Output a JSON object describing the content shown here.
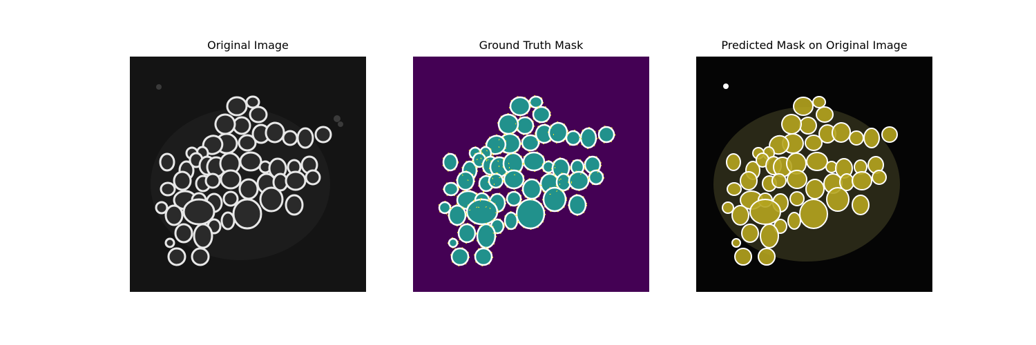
{
  "figure": {
    "panels": [
      {
        "title": "Original Image"
      },
      {
        "title": "Ground Truth Mask"
      },
      {
        "title": "Predicted Mask on Original Image"
      }
    ]
  },
  "colors": {
    "micrograph_background": "#141414",
    "cell_interior": "#2a2a2a",
    "cell_halo": "#e8e8e8",
    "mask_background": "#440154",
    "mask_cells": "#21918c",
    "mask_outline": "#fde725",
    "prediction_background": "#050505",
    "prediction_cells": "#b5a41f",
    "prediction_outline": "#ffffff"
  }
}
